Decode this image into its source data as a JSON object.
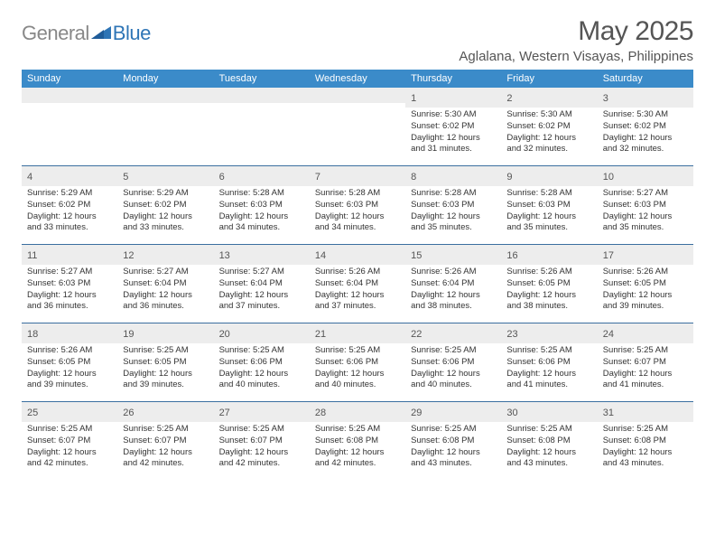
{
  "brand": {
    "text_gray": "General",
    "text_blue": "Blue",
    "logo_color": "#2e75b6",
    "gray_color": "#888888"
  },
  "header": {
    "month_title": "May 2025",
    "location": "Aglalana, Western Visayas, Philippines"
  },
  "colors": {
    "header_bg": "#3b8bc9",
    "week_border": "#3b6fa0",
    "daynum_bg": "#ededed"
  },
  "day_names": [
    "Sunday",
    "Monday",
    "Tuesday",
    "Wednesday",
    "Thursday",
    "Friday",
    "Saturday"
  ],
  "weeks": [
    [
      null,
      null,
      null,
      null,
      {
        "d": "1",
        "sr": "5:30 AM",
        "ss": "6:02 PM",
        "dl": "12 hours and 31 minutes."
      },
      {
        "d": "2",
        "sr": "5:30 AM",
        "ss": "6:02 PM",
        "dl": "12 hours and 32 minutes."
      },
      {
        "d": "3",
        "sr": "5:30 AM",
        "ss": "6:02 PM",
        "dl": "12 hours and 32 minutes."
      }
    ],
    [
      {
        "d": "4",
        "sr": "5:29 AM",
        "ss": "6:02 PM",
        "dl": "12 hours and 33 minutes."
      },
      {
        "d": "5",
        "sr": "5:29 AM",
        "ss": "6:02 PM",
        "dl": "12 hours and 33 minutes."
      },
      {
        "d": "6",
        "sr": "5:28 AM",
        "ss": "6:03 PM",
        "dl": "12 hours and 34 minutes."
      },
      {
        "d": "7",
        "sr": "5:28 AM",
        "ss": "6:03 PM",
        "dl": "12 hours and 34 minutes."
      },
      {
        "d": "8",
        "sr": "5:28 AM",
        "ss": "6:03 PM",
        "dl": "12 hours and 35 minutes."
      },
      {
        "d": "9",
        "sr": "5:28 AM",
        "ss": "6:03 PM",
        "dl": "12 hours and 35 minutes."
      },
      {
        "d": "10",
        "sr": "5:27 AM",
        "ss": "6:03 PM",
        "dl": "12 hours and 35 minutes."
      }
    ],
    [
      {
        "d": "11",
        "sr": "5:27 AM",
        "ss": "6:03 PM",
        "dl": "12 hours and 36 minutes."
      },
      {
        "d": "12",
        "sr": "5:27 AM",
        "ss": "6:04 PM",
        "dl": "12 hours and 36 minutes."
      },
      {
        "d": "13",
        "sr": "5:27 AM",
        "ss": "6:04 PM",
        "dl": "12 hours and 37 minutes."
      },
      {
        "d": "14",
        "sr": "5:26 AM",
        "ss": "6:04 PM",
        "dl": "12 hours and 37 minutes."
      },
      {
        "d": "15",
        "sr": "5:26 AM",
        "ss": "6:04 PM",
        "dl": "12 hours and 38 minutes."
      },
      {
        "d": "16",
        "sr": "5:26 AM",
        "ss": "6:05 PM",
        "dl": "12 hours and 38 minutes."
      },
      {
        "d": "17",
        "sr": "5:26 AM",
        "ss": "6:05 PM",
        "dl": "12 hours and 39 minutes."
      }
    ],
    [
      {
        "d": "18",
        "sr": "5:26 AM",
        "ss": "6:05 PM",
        "dl": "12 hours and 39 minutes."
      },
      {
        "d": "19",
        "sr": "5:25 AM",
        "ss": "6:05 PM",
        "dl": "12 hours and 39 minutes."
      },
      {
        "d": "20",
        "sr": "5:25 AM",
        "ss": "6:06 PM",
        "dl": "12 hours and 40 minutes."
      },
      {
        "d": "21",
        "sr": "5:25 AM",
        "ss": "6:06 PM",
        "dl": "12 hours and 40 minutes."
      },
      {
        "d": "22",
        "sr": "5:25 AM",
        "ss": "6:06 PM",
        "dl": "12 hours and 40 minutes."
      },
      {
        "d": "23",
        "sr": "5:25 AM",
        "ss": "6:06 PM",
        "dl": "12 hours and 41 minutes."
      },
      {
        "d": "24",
        "sr": "5:25 AM",
        "ss": "6:07 PM",
        "dl": "12 hours and 41 minutes."
      }
    ],
    [
      {
        "d": "25",
        "sr": "5:25 AM",
        "ss": "6:07 PM",
        "dl": "12 hours and 42 minutes."
      },
      {
        "d": "26",
        "sr": "5:25 AM",
        "ss": "6:07 PM",
        "dl": "12 hours and 42 minutes."
      },
      {
        "d": "27",
        "sr": "5:25 AM",
        "ss": "6:07 PM",
        "dl": "12 hours and 42 minutes."
      },
      {
        "d": "28",
        "sr": "5:25 AM",
        "ss": "6:08 PM",
        "dl": "12 hours and 42 minutes."
      },
      {
        "d": "29",
        "sr": "5:25 AM",
        "ss": "6:08 PM",
        "dl": "12 hours and 43 minutes."
      },
      {
        "d": "30",
        "sr": "5:25 AM",
        "ss": "6:08 PM",
        "dl": "12 hours and 43 minutes."
      },
      {
        "d": "31",
        "sr": "5:25 AM",
        "ss": "6:08 PM",
        "dl": "12 hours and 43 minutes."
      }
    ]
  ],
  "labels": {
    "sunrise": "Sunrise: ",
    "sunset": "Sunset: ",
    "daylight": "Daylight: "
  }
}
